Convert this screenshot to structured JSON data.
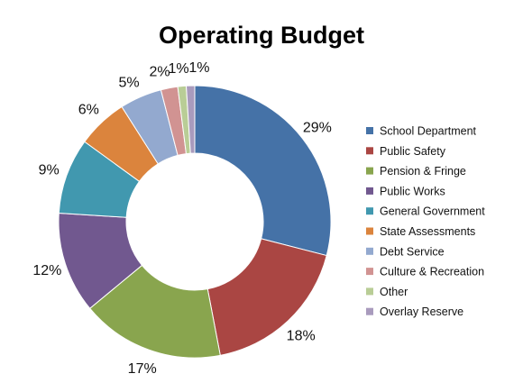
{
  "chart_data": {
    "type": "pie",
    "variant": "donut",
    "title": "Operating Budget",
    "legend_position": "right",
    "slices": [
      {
        "label": "School Department",
        "value": 29,
        "display": "29%",
        "color": "#4572A7"
      },
      {
        "label": "Public Safety",
        "value": 18,
        "display": "18%",
        "color": "#AA4643"
      },
      {
        "label": "Pension & Fringe",
        "value": 17,
        "display": "17%",
        "color": "#89A54E"
      },
      {
        "label": "Public Works",
        "value": 12,
        "display": "12%",
        "color": "#71588F"
      },
      {
        "label": "General Government",
        "value": 9,
        "display": "9%",
        "color": "#4198AF"
      },
      {
        "label": "State Assessments",
        "value": 6,
        "display": "6%",
        "color": "#DB843D"
      },
      {
        "label": "Debt Service",
        "value": 5,
        "display": "5%",
        "color": "#93A9CF"
      },
      {
        "label": "Culture & Recreation",
        "value": 2,
        "display": "2%",
        "color": "#D19392"
      },
      {
        "label": "Other",
        "value": 1,
        "display": "1%",
        "color": "#B9CD96"
      },
      {
        "label": "Overlay Reserve",
        "value": 1,
        "display": "1%",
        "color": "#A99BBD"
      }
    ]
  }
}
